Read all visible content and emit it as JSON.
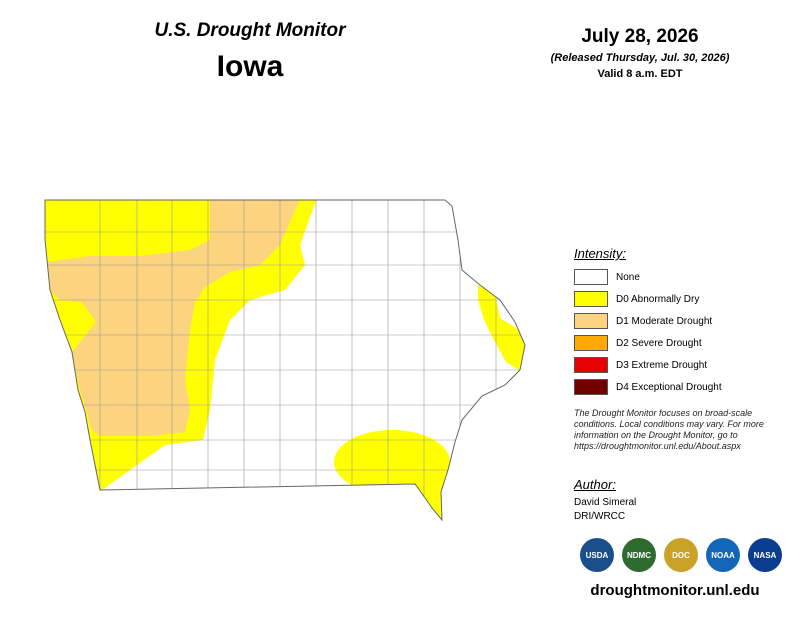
{
  "header": {
    "title": "U.S. Drought Monitor",
    "state": "Iowa"
  },
  "date": {
    "date": "July 28, 2026",
    "released": "(Released Thursday, Jul. 30, 2026)",
    "valid": "Valid 8 a.m. EDT"
  },
  "legend": {
    "title": "Intensity:",
    "items": [
      {
        "label": "None",
        "color": "#ffffff"
      },
      {
        "label": "D0 Abnormally Dry",
        "color": "#ffff00"
      },
      {
        "label": "D1 Moderate Drought",
        "color": "#fcd37f"
      },
      {
        "label": "D2 Severe Drought",
        "color": "#ffaa00"
      },
      {
        "label": "D3 Extreme Drought",
        "color": "#e60000"
      },
      {
        "label": "D4 Exceptional Drought",
        "color": "#730000"
      }
    ]
  },
  "note": "The Drought Monitor focuses on broad-scale conditions. Local conditions may vary. For more information on the Drought Monitor, go to https://droughtmonitor.unl.edu/About.aspx",
  "author": {
    "title": "Author:",
    "names": [
      "David Simeral",
      "DRI/WRCC"
    ]
  },
  "logos": [
    {
      "label": "USDA",
      "color": "#1a4f8b"
    },
    {
      "label": "NDMC",
      "color": "#2e6b2e"
    },
    {
      "label": "DOC",
      "color": "#c9a227"
    },
    {
      "label": "NOAA",
      "color": "#1467b8"
    },
    {
      "label": "NASA",
      "color": "#0b3d91"
    }
  ],
  "url": "droughtmonitor.unl.edu"
}
